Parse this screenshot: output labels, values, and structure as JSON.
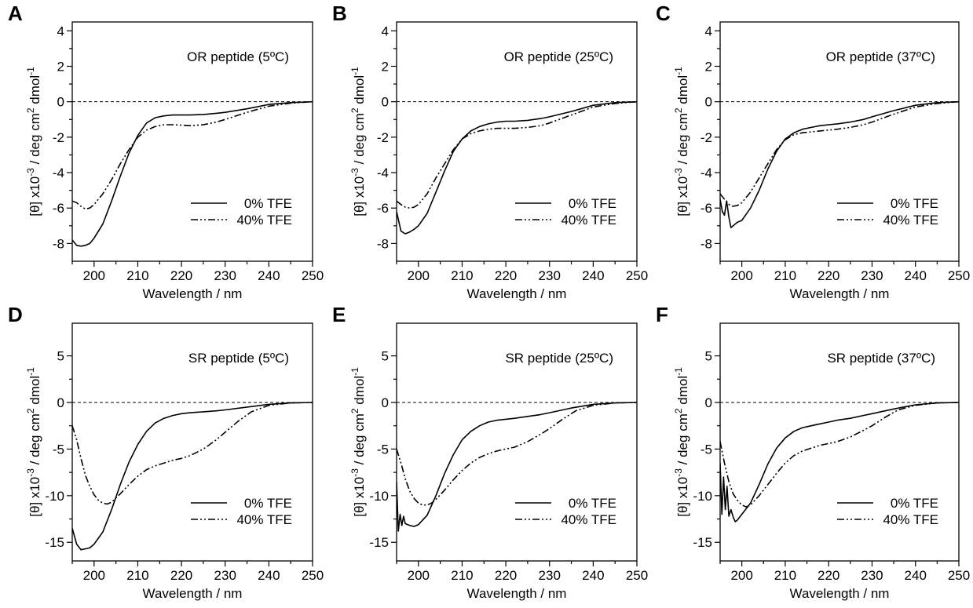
{
  "chart_data": [
    {
      "type": "line",
      "panel": "A",
      "annotation": "OR peptide (5ºC)",
      "xlabel": "Wavelength / nm",
      "ylabel_parts": [
        "[θ] x10",
        "-3",
        " / deg cm",
        "2",
        " dmol",
        "-1"
      ],
      "xlim": [
        195,
        250
      ],
      "ylim": [
        -9,
        4.5
      ],
      "xticks": [
        200,
        210,
        220,
        230,
        240,
        250
      ],
      "yticks": [
        -8,
        -6,
        -4,
        -2,
        0,
        2,
        4
      ],
      "zero_line": true,
      "legend_position": "lower-right",
      "series": [
        {
          "name": "0% TFE",
          "style": "solid",
          "x": [
            195,
            196,
            197,
            198,
            199,
            200,
            202,
            204,
            206,
            208,
            210,
            212,
            214,
            216,
            218,
            220,
            222,
            225,
            228,
            230,
            235,
            240,
            245,
            250
          ],
          "y": [
            -7.8,
            -8.1,
            -8.15,
            -8.1,
            -8.0,
            -7.7,
            -6.9,
            -5.6,
            -4.2,
            -2.9,
            -1.9,
            -1.2,
            -0.9,
            -0.8,
            -0.75,
            -0.75,
            -0.75,
            -0.72,
            -0.65,
            -0.6,
            -0.4,
            -0.15,
            -0.05,
            0.0
          ]
        },
        {
          "name": "40% TFE",
          "style": "dash-dot-dot",
          "x": [
            195,
            196,
            197,
            198,
            199,
            200,
            202,
            204,
            206,
            208,
            210,
            212,
            214,
            216,
            218,
            220,
            222,
            225,
            228,
            230,
            235,
            240,
            245,
            250
          ],
          "y": [
            -5.6,
            -5.7,
            -5.9,
            -6.05,
            -6.0,
            -5.8,
            -5.2,
            -4.4,
            -3.5,
            -2.7,
            -2.0,
            -1.6,
            -1.4,
            -1.3,
            -1.3,
            -1.32,
            -1.35,
            -1.3,
            -1.15,
            -1.0,
            -0.6,
            -0.25,
            -0.08,
            0.0
          ]
        }
      ]
    },
    {
      "type": "line",
      "panel": "B",
      "annotation": "OR peptide (25ºC)",
      "xlabel": "Wavelength / nm",
      "ylabel_parts": [
        "[θ] x10",
        "-3",
        " / deg cm",
        "2",
        " dmol",
        "-1"
      ],
      "xlim": [
        195,
        250
      ],
      "ylim": [
        -9,
        4.5
      ],
      "xticks": [
        200,
        210,
        220,
        230,
        240,
        250
      ],
      "yticks": [
        -8,
        -6,
        -4,
        -2,
        0,
        2,
        4
      ],
      "zero_line": true,
      "legend_position": "lower-right",
      "series": [
        {
          "name": "0% TFE",
          "style": "solid",
          "x": [
            195,
            196,
            197,
            198,
            199,
            200,
            202,
            204,
            206,
            208,
            210,
            212,
            214,
            216,
            218,
            220,
            222,
            225,
            228,
            230,
            235,
            240,
            245,
            250
          ],
          "y": [
            -6.2,
            -7.3,
            -7.45,
            -7.35,
            -7.2,
            -7.0,
            -6.3,
            -5.1,
            -3.9,
            -2.8,
            -2.1,
            -1.65,
            -1.4,
            -1.25,
            -1.15,
            -1.1,
            -1.1,
            -1.05,
            -0.95,
            -0.85,
            -0.55,
            -0.2,
            -0.05,
            0.0
          ]
        },
        {
          "name": "40% TFE",
          "style": "dash-dot-dot",
          "x": [
            195,
            196,
            197,
            198,
            199,
            200,
            202,
            204,
            206,
            208,
            210,
            212,
            214,
            216,
            218,
            220,
            222,
            225,
            228,
            230,
            235,
            240,
            245,
            250
          ],
          "y": [
            -5.6,
            -5.8,
            -5.95,
            -6.0,
            -5.95,
            -5.8,
            -5.2,
            -4.3,
            -3.5,
            -2.7,
            -2.1,
            -1.8,
            -1.65,
            -1.55,
            -1.5,
            -1.5,
            -1.5,
            -1.45,
            -1.35,
            -1.2,
            -0.75,
            -0.3,
            -0.1,
            0.0
          ]
        }
      ]
    },
    {
      "type": "line",
      "panel": "C",
      "annotation": "OR peptide (37ºC)",
      "xlabel": "Wavelength / nm",
      "ylabel_parts": [
        "[θ] x10",
        "-3",
        " / deg cm",
        "2",
        " dmol",
        "-1"
      ],
      "xlim": [
        195,
        250
      ],
      "ylim": [
        -9,
        4.5
      ],
      "xticks": [
        200,
        210,
        220,
        230,
        240,
        250
      ],
      "yticks": [
        -8,
        -6,
        -4,
        -2,
        0,
        2,
        4
      ],
      "zero_line": true,
      "legend_position": "lower-right",
      "series": [
        {
          "name": "0% TFE",
          "style": "solid",
          "x": [
            195,
            195.5,
            196,
            196.5,
            197,
            197.5,
            198,
            199,
            200,
            202,
            204,
            206,
            208,
            210,
            212,
            214,
            216,
            218,
            220,
            222,
            225,
            228,
            230,
            235,
            240,
            245,
            250
          ],
          "y": [
            -5.5,
            -6.2,
            -6.4,
            -5.6,
            -6.5,
            -7.1,
            -7.0,
            -6.8,
            -6.7,
            -6.0,
            -5.0,
            -3.8,
            -2.8,
            -2.1,
            -1.75,
            -1.55,
            -1.45,
            -1.35,
            -1.3,
            -1.25,
            -1.15,
            -1.0,
            -0.85,
            -0.5,
            -0.2,
            -0.05,
            0.0
          ]
        },
        {
          "name": "40% TFE",
          "style": "dash-dot-dot",
          "x": [
            195,
            196,
            197,
            198,
            199,
            200,
            202,
            204,
            206,
            208,
            210,
            212,
            214,
            216,
            218,
            220,
            222,
            225,
            228,
            230,
            235,
            240,
            245,
            250
          ],
          "y": [
            -5.2,
            -5.5,
            -5.8,
            -5.9,
            -5.85,
            -5.7,
            -5.1,
            -4.3,
            -3.5,
            -2.7,
            -2.15,
            -1.85,
            -1.75,
            -1.7,
            -1.65,
            -1.6,
            -1.55,
            -1.45,
            -1.3,
            -1.15,
            -0.7,
            -0.3,
            -0.1,
            0.0
          ]
        }
      ]
    },
    {
      "type": "line",
      "panel": "D",
      "annotation": "SR peptide (5ºC)",
      "xlabel": "Wavelength / nm",
      "ylabel_parts": [
        "[θ] x10",
        "-3",
        " / deg cm",
        "2",
        " dmol",
        "-1"
      ],
      "xlim": [
        195,
        250
      ],
      "ylim": [
        -17,
        8.5
      ],
      "xticks": [
        200,
        210,
        220,
        230,
        240,
        250
      ],
      "yticks": [
        -15,
        -10,
        -5,
        0,
        5
      ],
      "zero_line": true,
      "legend_position": "lower-right",
      "series": [
        {
          "name": "0% TFE",
          "style": "solid",
          "x": [
            195,
            196,
            197,
            198,
            199,
            200,
            202,
            204,
            206,
            208,
            210,
            212,
            214,
            216,
            218,
            220,
            222,
            225,
            228,
            230,
            235,
            240,
            245,
            250
          ],
          "y": [
            -13.5,
            -15.2,
            -15.8,
            -15.7,
            -15.6,
            -15.2,
            -13.9,
            -11.5,
            -8.8,
            -6.4,
            -4.5,
            -3.1,
            -2.2,
            -1.7,
            -1.4,
            -1.2,
            -1.1,
            -1.0,
            -0.9,
            -0.8,
            -0.5,
            -0.2,
            -0.05,
            0.0
          ]
        },
        {
          "name": "40% TFE",
          "style": "dash-dot-dot",
          "x": [
            195,
            196,
            197,
            198,
            199,
            200,
            201,
            202,
            203,
            204,
            206,
            208,
            210,
            212,
            214,
            216,
            218,
            220,
            222,
            225,
            228,
            230,
            233,
            236,
            240,
            245,
            250
          ],
          "y": [
            -2.5,
            -4.0,
            -6.0,
            -7.8,
            -9.0,
            -9.9,
            -10.5,
            -10.8,
            -10.9,
            -10.7,
            -9.8,
            -8.8,
            -7.9,
            -7.2,
            -6.8,
            -6.5,
            -6.2,
            -6.0,
            -5.7,
            -5.0,
            -4.0,
            -3.2,
            -2.0,
            -1.0,
            -0.3,
            -0.05,
            0.0
          ]
        }
      ]
    },
    {
      "type": "line",
      "panel": "E",
      "annotation": "SR peptide (25ºC)",
      "xlabel": "Wavelength / nm",
      "ylabel_parts": [
        "[θ] x10",
        "-3",
        " / deg cm",
        "2",
        " dmol",
        "-1"
      ],
      "xlim": [
        195,
        250
      ],
      "ylim": [
        -17,
        8.5
      ],
      "xticks": [
        200,
        210,
        220,
        230,
        240,
        250
      ],
      "yticks": [
        -15,
        -10,
        -5,
        0,
        5
      ],
      "zero_line": true,
      "legend_position": "lower-right",
      "series": [
        {
          "name": "0% TFE",
          "style": "solid",
          "x": [
            195,
            195.4,
            195.8,
            196.2,
            196.6,
            197,
            198,
            199,
            200,
            202,
            204,
            206,
            208,
            210,
            212,
            214,
            216,
            218,
            220,
            222,
            225,
            228,
            230,
            235,
            240,
            245,
            250
          ],
          "y": [
            -8.5,
            -13.8,
            -12.0,
            -13.2,
            -12.2,
            -13.0,
            -13.2,
            -13.3,
            -13.1,
            -12.1,
            -10.0,
            -7.6,
            -5.6,
            -4.0,
            -3.1,
            -2.5,
            -2.1,
            -1.9,
            -1.8,
            -1.7,
            -1.5,
            -1.3,
            -1.1,
            -0.6,
            -0.2,
            -0.05,
            0.0
          ]
        },
        {
          "name": "40% TFE",
          "style": "dash-dot-dot",
          "x": [
            195,
            196,
            197,
            198,
            199,
            200,
            201,
            202,
            203,
            204,
            206,
            208,
            210,
            212,
            214,
            216,
            218,
            220,
            222,
            225,
            228,
            230,
            233,
            236,
            240,
            245,
            250
          ],
          "y": [
            -5.0,
            -6.5,
            -8.2,
            -9.5,
            -10.3,
            -10.8,
            -11.0,
            -11.0,
            -10.8,
            -10.4,
            -9.4,
            -8.3,
            -7.3,
            -6.5,
            -5.9,
            -5.5,
            -5.2,
            -5.0,
            -4.8,
            -4.2,
            -3.4,
            -2.8,
            -1.8,
            -0.9,
            -0.3,
            -0.05,
            0.0
          ]
        }
      ]
    },
    {
      "type": "line",
      "panel": "F",
      "annotation": "SR peptide (37ºC)",
      "xlabel": "Wavelength / nm",
      "ylabel_parts": [
        "[θ] x10",
        "-3",
        " / deg cm",
        "2",
        " dmol",
        "-1"
      ],
      "xlim": [
        195,
        250
      ],
      "ylim": [
        -17,
        8.5
      ],
      "xticks": [
        200,
        210,
        220,
        230,
        240,
        250
      ],
      "yticks": [
        -15,
        -10,
        -5,
        0,
        5
      ],
      "zero_line": true,
      "legend_position": "lower-right",
      "series": [
        {
          "name": "0% TFE",
          "style": "solid",
          "x": [
            195,
            195.4,
            195.8,
            196.2,
            196.6,
            197,
            197.5,
            198,
            198.5,
            199,
            200,
            202,
            204,
            206,
            208,
            210,
            212,
            214,
            216,
            218,
            220,
            222,
            225,
            228,
            230,
            235,
            240,
            245,
            250
          ],
          "y": [
            -6.5,
            -12.0,
            -8.0,
            -11.5,
            -9.0,
            -12.2,
            -11.5,
            -12.3,
            -12.8,
            -12.6,
            -12.0,
            -10.8,
            -8.8,
            -6.6,
            -4.9,
            -3.8,
            -3.1,
            -2.7,
            -2.5,
            -2.3,
            -2.1,
            -1.9,
            -1.7,
            -1.4,
            -1.2,
            -0.7,
            -0.25,
            -0.05,
            0.0
          ]
        },
        {
          "name": "40% TFE",
          "style": "dash-dot-dot",
          "x": [
            195,
            196,
            197,
            198,
            199,
            200,
            201,
            202,
            204,
            206,
            208,
            210,
            212,
            214,
            216,
            218,
            220,
            222,
            225,
            228,
            230,
            233,
            236,
            240,
            245,
            250
          ],
          "y": [
            -4.2,
            -6.5,
            -8.5,
            -9.8,
            -10.5,
            -11.0,
            -11.2,
            -11.0,
            -10.0,
            -8.8,
            -7.6,
            -6.5,
            -5.7,
            -5.2,
            -4.9,
            -4.6,
            -4.4,
            -4.2,
            -3.7,
            -3.0,
            -2.5,
            -1.6,
            -0.8,
            -0.3,
            -0.05,
            0.0
          ]
        }
      ]
    }
  ]
}
